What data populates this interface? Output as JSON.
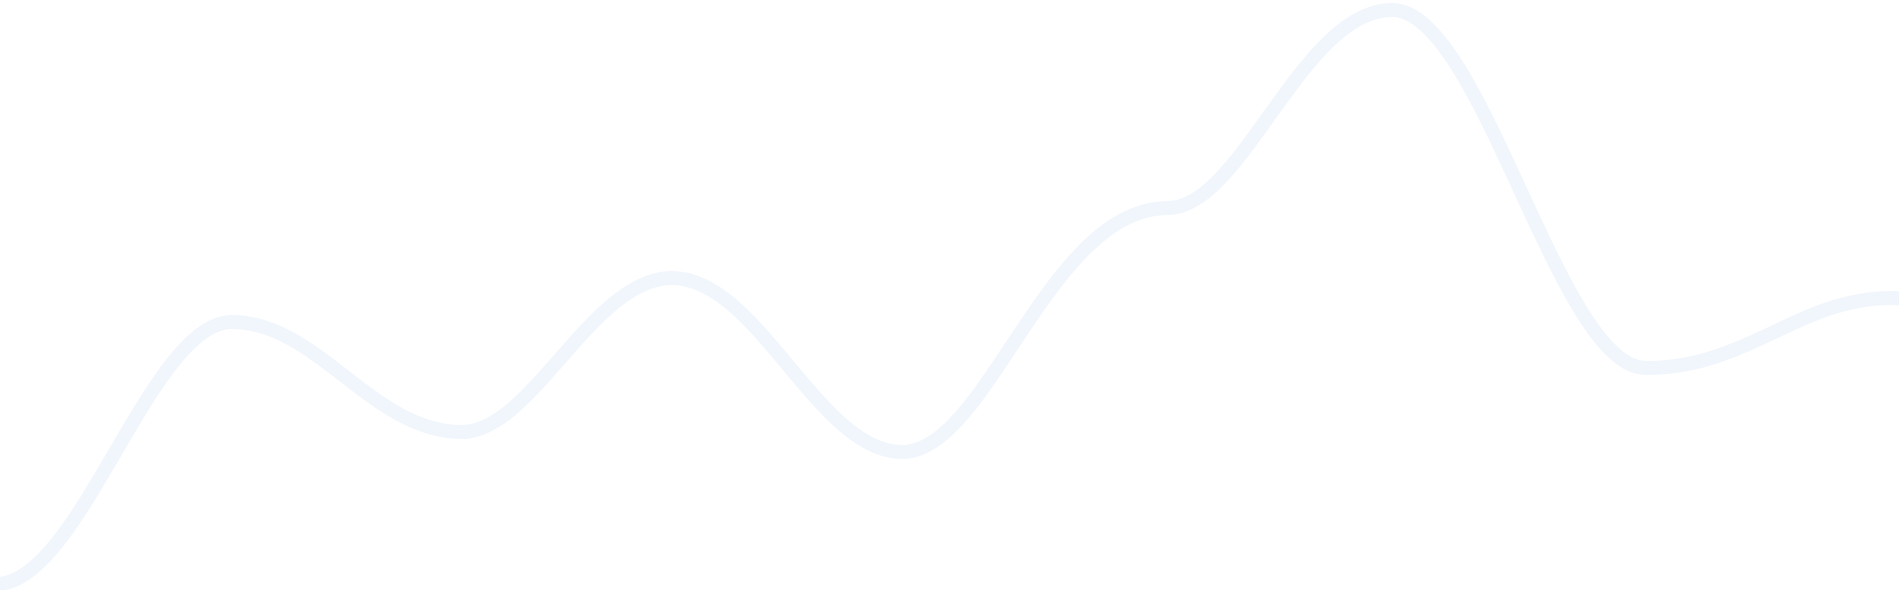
{
  "decoration": {
    "name": "wave-line",
    "stroke_color": "#f1f6fd",
    "background_color": "#ffffff"
  }
}
